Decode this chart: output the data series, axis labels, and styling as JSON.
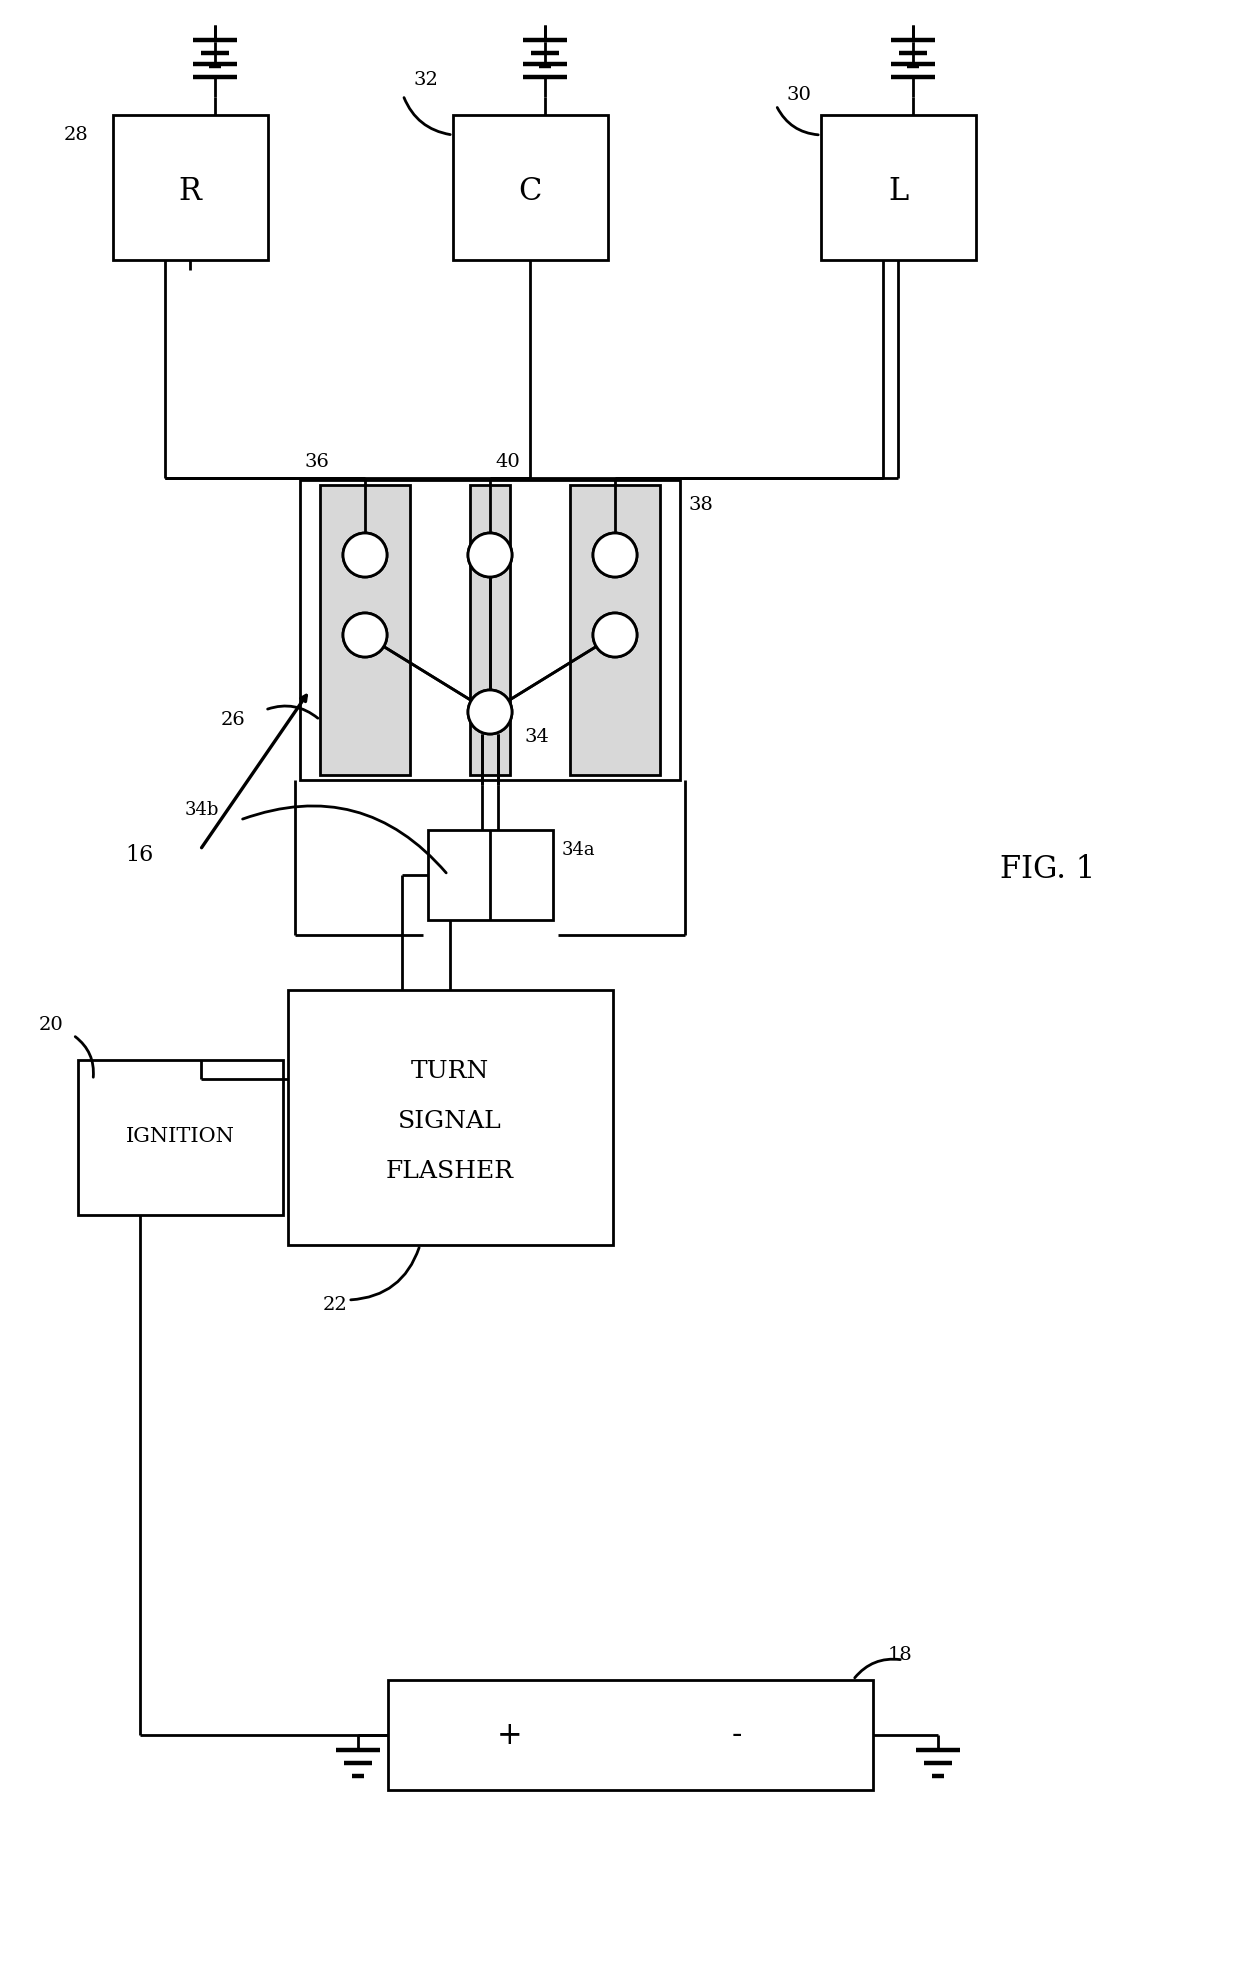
{
  "bg": "#ffffff",
  "lc": "#000000",
  "lw": 2.0,
  "fig_label": "FIG. 1",
  "lamp_labels": [
    "R",
    "C",
    "L"
  ],
  "lamp_refs": [
    "28",
    "32",
    "30"
  ],
  "ignition_label": "IGNITION",
  "ignition_ref": "20",
  "flasher_lines": [
    "TURN",
    "SIGNAL",
    "FLASHER"
  ],
  "flasher_ref": "22",
  "battery_labels": [
    "+",
    "-"
  ],
  "battery_ref": "18",
  "switch_ref": "26",
  "system_ref": "16",
  "contact_refs": [
    "36",
    "40",
    "38"
  ],
  "lever_ref": "34",
  "actuator_ref_a": "34a",
  "actuator_ref_b": "34b"
}
